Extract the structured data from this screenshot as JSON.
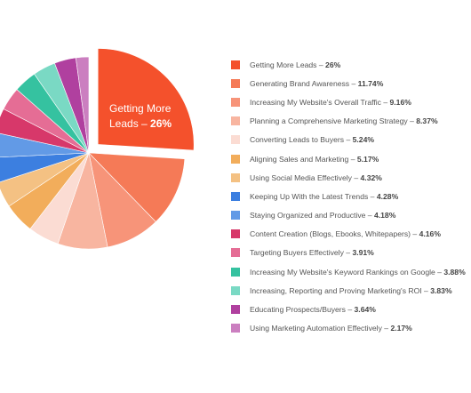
{
  "chart_data": {
    "type": "pie",
    "callout": {
      "line1": "Getting More",
      "line2": "Leads – ",
      "value": "26%"
    },
    "slices": [
      {
        "label": "Getting More Leads",
        "value": 26,
        "display": "26%",
        "color": "#f4512c"
      },
      {
        "label": "Generating Brand Awareness",
        "value": 11.74,
        "display": "11.74%",
        "color": "#f57a57"
      },
      {
        "label": "Increasing My Website's Overall Traffic",
        "value": 9.16,
        "display": "9.16%",
        "color": "#f79479"
      },
      {
        "label": "Planning a Comprehensive Marketing Strategy",
        "value": 8.37,
        "display": "8.37%",
        "color": "#f8b5a0"
      },
      {
        "label": "Converting Leads to Buyers",
        "value": 5.24,
        "display": "5.24%",
        "color": "#fbdcd3"
      },
      {
        "label": "Aligning Sales and Marketing",
        "value": 5.17,
        "display": "5.17%",
        "color": "#f2ad5b"
      },
      {
        "label": "Using Social Media Effectively",
        "value": 4.32,
        "display": "4.32%",
        "color": "#f4c183"
      },
      {
        "label": "Keeping Up With the Latest Trends",
        "value": 4.28,
        "display": "4.28%",
        "color": "#3c7fe0"
      },
      {
        "label": "Staying Organized and Productive",
        "value": 4.18,
        "display": "4.18%",
        "color": "#629ae6"
      },
      {
        "label": "Content Creation (Blogs, Ebooks, Whitepapers)",
        "value": 4.16,
        "display": "4.16%",
        "color": "#d7386a"
      },
      {
        "label": "Targeting Buyers Effectively",
        "value": 3.91,
        "display": "3.91%",
        "color": "#e56d95"
      },
      {
        "label": "Increasing My Website's Keyword Rankings on Google",
        "value": 3.88,
        "display": "3.88%",
        "color": "#35c2a0"
      },
      {
        "label": "Increasing, Reporting and Proving Marketing's ROI",
        "value": 3.83,
        "display": "3.83%",
        "color": "#7ad9c4"
      },
      {
        "label": "Educating Prospects/Buyers",
        "value": 3.64,
        "display": "3.64%",
        "color": "#b0409f"
      },
      {
        "label": "Using Marketing Automation Effectively",
        "value": 2.17,
        "display": "2.17%",
        "color": "#cb7fc0"
      }
    ]
  }
}
